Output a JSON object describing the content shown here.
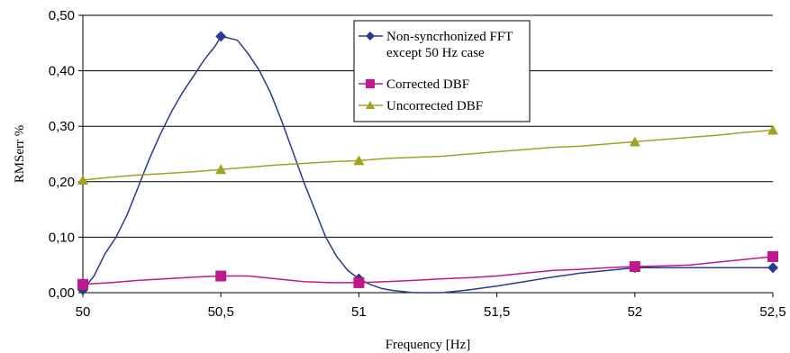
{
  "chart_data": {
    "type": "line",
    "xlabel": "Frequency [Hz]",
    "ylabel": "RMSerr %",
    "xlim": [
      50,
      52.5
    ],
    "ylim": [
      0,
      0.5
    ],
    "x_ticks": [
      50,
      50.5,
      51,
      51.5,
      52,
      52.5
    ],
    "x_tick_labels": [
      "50",
      "50,5",
      "51",
      "51,5",
      "52",
      "52,5"
    ],
    "y_ticks": [
      0,
      0.1,
      0.2,
      0.3,
      0.4,
      0.5
    ],
    "y_tick_labels": [
      "0,00",
      "0,10",
      "0,20",
      "0,30",
      "0,40",
      "0,50"
    ],
    "grid": "horizontal",
    "legend_position": "top-center",
    "series": [
      {
        "name": "Non-syncrhonized FFT except 50 Hz case",
        "color": "#2b3a8f",
        "marker": "diamond",
        "x": [
          50,
          50.04,
          50.08,
          50.12,
          50.16,
          50.2,
          50.24,
          50.28,
          50.32,
          50.36,
          50.4,
          50.44,
          50.48,
          50.5,
          50.52,
          50.56,
          50.6,
          50.64,
          50.68,
          50.72,
          50.76,
          50.8,
          50.84,
          50.88,
          50.92,
          50.96,
          51,
          51.04,
          51.08,
          51.12,
          51.2,
          51.3,
          51.4,
          51.5,
          51.6,
          51.7,
          51.8,
          51.9,
          52,
          52.1,
          52.2,
          52.3,
          52.4,
          52.5
        ],
        "y": [
          0.005,
          0.03,
          0.07,
          0.1,
          0.14,
          0.19,
          0.24,
          0.285,
          0.325,
          0.36,
          0.39,
          0.42,
          0.445,
          0.462,
          0.46,
          0.455,
          0.43,
          0.4,
          0.36,
          0.31,
          0.255,
          0.2,
          0.15,
          0.1,
          0.065,
          0.04,
          0.025,
          0.015,
          0.008,
          0.004,
          0.0,
          0.0,
          0.005,
          0.012,
          0.02,
          0.028,
          0.035,
          0.04,
          0.045,
          0.045,
          0.045,
          0.045,
          0.045,
          0.045
        ],
        "marked_points": [
          [
            50,
            0.005
          ],
          [
            50.5,
            0.462
          ],
          [
            51,
            0.025
          ],
          [
            52,
            0.045
          ],
          [
            52.5,
            0.045
          ]
        ]
      },
      {
        "name": "Corrected DBF",
        "color": "#c0188c",
        "marker": "square",
        "x": [
          50,
          50.1,
          50.2,
          50.3,
          50.4,
          50.5,
          50.6,
          50.7,
          50.8,
          50.9,
          51,
          51.1,
          51.2,
          51.3,
          51.4,
          51.5,
          51.6,
          51.7,
          51.8,
          51.9,
          52,
          52.1,
          52.2,
          52.3,
          52.4,
          52.5
        ],
        "y": [
          0.015,
          0.018,
          0.022,
          0.025,
          0.028,
          0.03,
          0.03,
          0.025,
          0.02,
          0.018,
          0.018,
          0.02,
          0.022,
          0.025,
          0.027,
          0.03,
          0.035,
          0.04,
          0.042,
          0.045,
          0.047,
          0.048,
          0.05,
          0.055,
          0.06,
          0.065
        ],
        "marked_points": [
          [
            50,
            0.015
          ],
          [
            50.5,
            0.03
          ],
          [
            51,
            0.018
          ],
          [
            52,
            0.047
          ],
          [
            52.5,
            0.065
          ]
        ]
      },
      {
        "name": "Uncorrected DBF",
        "color": "#a3a022",
        "marker": "triangle",
        "x": [
          50,
          50.1,
          50.2,
          50.3,
          50.4,
          50.5,
          50.6,
          50.7,
          50.8,
          50.9,
          51,
          51.1,
          51.2,
          51.3,
          51.4,
          51.5,
          51.6,
          51.7,
          51.8,
          51.9,
          52,
          52.1,
          52.2,
          52.3,
          52.4,
          52.5
        ],
        "y": [
          0.203,
          0.208,
          0.212,
          0.215,
          0.218,
          0.222,
          0.226,
          0.23,
          0.233,
          0.236,
          0.238,
          0.242,
          0.244,
          0.246,
          0.25,
          0.254,
          0.258,
          0.262,
          0.264,
          0.268,
          0.272,
          0.276,
          0.28,
          0.284,
          0.289,
          0.293
        ],
        "marked_points": [
          [
            50,
            0.203
          ],
          [
            50.5,
            0.222
          ],
          [
            51,
            0.238
          ],
          [
            52,
            0.272
          ],
          [
            52.5,
            0.293
          ]
        ]
      }
    ],
    "legend_lines": {
      "0": [
        "Non-syncrhonized FFT",
        "except 50 Hz case"
      ],
      "1": [
        "Corrected DBF"
      ],
      "2": [
        "Uncorrected DBF"
      ]
    }
  }
}
